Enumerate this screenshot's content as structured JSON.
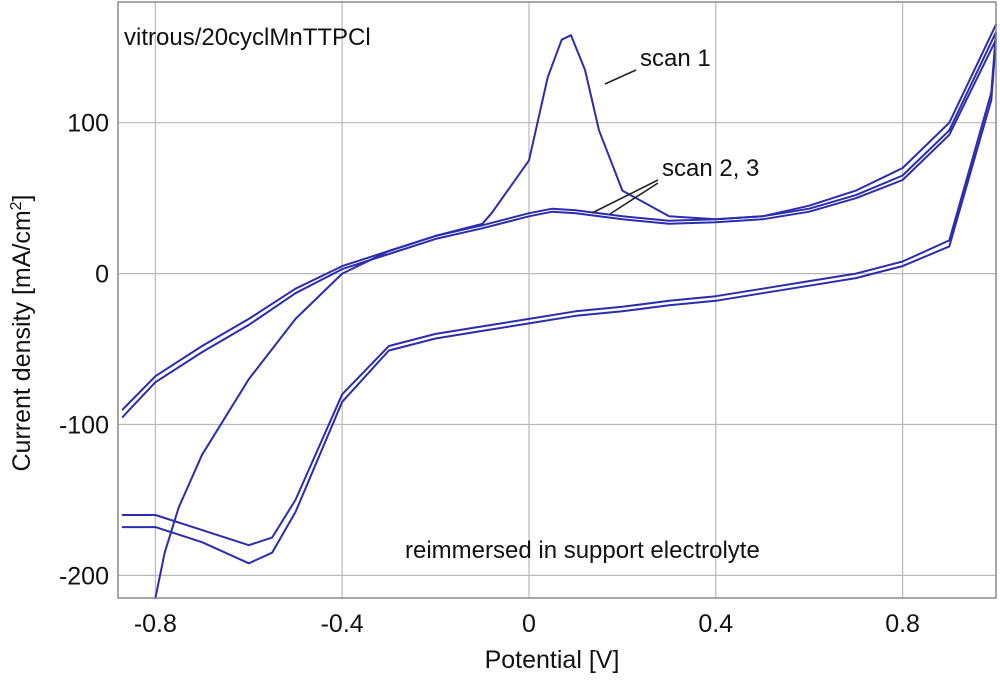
{
  "chart_data": {
    "type": "line",
    "title": "",
    "xlabel": "Potential [V]",
    "ylabel": "Current density [mA/cm",
    "ylabel_sup": "2",
    "ylabel_close": "]",
    "xlim": [
      -0.88,
      1.0
    ],
    "ylim": [
      -215,
      180
    ],
    "xticks": [
      -0.8,
      -0.4,
      0,
      0.4,
      0.8
    ],
    "xtick_labels": [
      "-0.8",
      "-0.4",
      "0",
      "0.4",
      "0.8"
    ],
    "yticks": [
      -200,
      -100,
      0,
      100
    ],
    "ytick_labels": [
      "-200",
      "-100",
      "0",
      "100"
    ],
    "grid": true,
    "line_color": "#2c2cae",
    "annotations": {
      "sample": "vitrous/20cyclMnTTPCl",
      "scan1": "scan 1",
      "scan23": "scan 2, 3",
      "condition": "reimmersed in support electrolyte"
    },
    "series": [
      {
        "x": [
          -0.08,
          0.0,
          0.04,
          0.07,
          0.09,
          0.12,
          0.15,
          0.2,
          0.3,
          0.4,
          0.5,
          0.6,
          0.7,
          0.8,
          0.9,
          1.0
        ],
        "y": [
          40,
          75,
          130,
          155,
          158,
          135,
          95,
          55,
          38,
          36,
          38,
          45,
          55,
          70,
          100,
          165
        ]
      },
      {
        "x": [
          -0.87,
          -0.8,
          -0.7,
          -0.6,
          -0.5,
          -0.4,
          -0.3,
          -0.2,
          -0.1,
          0.0,
          0.05,
          0.1,
          0.2,
          0.3,
          0.4,
          0.5,
          0.6,
          0.7,
          0.8,
          0.9,
          1.0,
          0.99,
          0.9,
          0.8,
          0.7,
          0.6,
          0.5,
          0.4,
          0.3,
          0.2,
          0.1,
          0.0,
          -0.1,
          -0.2,
          -0.3,
          -0.4,
          -0.5,
          -0.55,
          -0.6,
          -0.7,
          -0.8,
          -0.87
        ],
        "y": [
          -90,
          -68,
          -48,
          -30,
          -10,
          5,
          15,
          25,
          32,
          40,
          43,
          42,
          38,
          35,
          36,
          38,
          43,
          52,
          65,
          95,
          160,
          120,
          22,
          8,
          0,
          -5,
          -10,
          -15,
          -18,
          -22,
          -25,
          -30,
          -35,
          -40,
          -48,
          -80,
          -150,
          -175,
          -180,
          -170,
          -160,
          -160
        ]
      },
      {
        "x": [
          -0.87,
          -0.8,
          -0.7,
          -0.6,
          -0.5,
          -0.4,
          -0.3,
          -0.2,
          -0.1,
          0.0,
          0.05,
          0.1,
          0.2,
          0.3,
          0.4,
          0.5,
          0.6,
          0.7,
          0.8,
          0.9,
          1.0,
          0.99,
          0.9,
          0.8,
          0.7,
          0.6,
          0.5,
          0.4,
          0.3,
          0.2,
          0.1,
          0.0,
          -0.1,
          -0.2,
          -0.3,
          -0.4,
          -0.5,
          -0.55,
          -0.6,
          -0.7,
          -0.8,
          -0.87
        ],
        "y": [
          -95,
          -72,
          -52,
          -34,
          -13,
          3,
          13,
          23,
          30,
          38,
          41,
          40,
          36,
          33,
          34,
          36,
          41,
          50,
          62,
          92,
          155,
          115,
          18,
          5,
          -3,
          -8,
          -13,
          -18,
          -21,
          -25,
          -28,
          -33,
          -38,
          -43,
          -51,
          -85,
          -158,
          -185,
          -192,
          -178,
          -168,
          -168
        ]
      },
      {
        "x": [
          -0.8,
          -0.78,
          -0.75,
          -0.7,
          -0.6,
          -0.5,
          -0.4,
          -0.3,
          -0.2,
          -0.1,
          -0.08
        ],
        "y": [
          -215,
          -185,
          -155,
          -120,
          -70,
          -30,
          0,
          15,
          25,
          33,
          40
        ]
      }
    ]
  }
}
